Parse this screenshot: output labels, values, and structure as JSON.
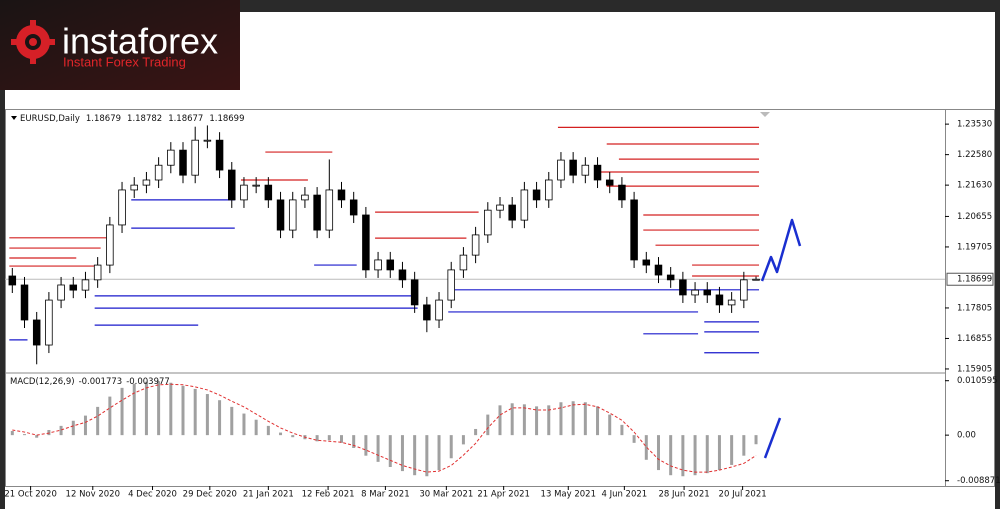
{
  "branding": {
    "name": "instaforex",
    "tagline": "Instant Forex Trading"
  },
  "chart_data": {
    "type": "candlestick",
    "symbol": "EURUSD,Daily",
    "xlim": [
      -0.6,
      76.5
    ],
    "xticks": [
      {
        "value": 1.5,
        "label": "21 Oct 2020"
      },
      {
        "value": 6.6,
        "label": "12 Nov 2020"
      },
      {
        "value": 11.5,
        "label": "4 Dec 2020"
      },
      {
        "value": 16.2,
        "label": "29 Dec 2020"
      },
      {
        "value": 21,
        "label": "21 Jan 2021"
      },
      {
        "value": 25.9,
        "label": "12 Feb 2021"
      },
      {
        "value": 30.6,
        "label": "8 Mar 2021"
      },
      {
        "value": 35.6,
        "label": "30 Mar 2021"
      },
      {
        "value": 40.3,
        "label": "21 Apr 2021"
      },
      {
        "value": 45.6,
        "label": "13 May 2021"
      },
      {
        "value": 50.2,
        "label": "4 Jun 2021"
      },
      {
        "value": 55.1,
        "label": "28 Jun 2021"
      },
      {
        "value": 59.9,
        "label": "20 Jul 2021"
      }
    ],
    "ylim": [
      1.1581,
      1.2397
    ],
    "yticks": [
      {
        "value": 1.2353,
        "label": "1.23530"
      },
      {
        "value": 1.2258,
        "label": "1.22580"
      },
      {
        "value": 1.2163,
        "label": "1.21630"
      },
      {
        "value": 1.20655,
        "label": "1.20655"
      },
      {
        "value": 1.19705,
        "label": "1.19705"
      },
      {
        "value": 1.17805,
        "label": "1.17805"
      },
      {
        "value": 1.16855,
        "label": "1.16855"
      },
      {
        "value": 1.15905,
        "label": "1.15905"
      }
    ],
    "color": "#000000",
    "series": {
      "open": [
        1.188,
        1.1852,
        1.1743,
        1.1665,
        1.1805,
        1.1852,
        1.1836,
        1.1868,
        1.1914,
        1.2039,
        1.2148,
        1.2163,
        1.2179,
        1.2225,
        1.2272,
        1.2194,
        1.2303,
        1.2303,
        1.221,
        1.2117,
        1.2163,
        1.2163,
        1.2117,
        1.2023,
        1.2117,
        1.2132,
        1.2023,
        1.2148,
        1.2117,
        1.207,
        1.1899,
        1.193,
        1.1899,
        1.1868,
        1.179,
        1.1743,
        1.1805,
        1.1899,
        1.1945,
        1.2008,
        1.2085,
        1.2101,
        1.2054,
        1.2148,
        1.2117,
        1.2179,
        1.2241,
        1.2194,
        1.2225,
        1.2179,
        1.2163,
        1.2117,
        1.193,
        1.1914,
        1.1883,
        1.1868,
        1.1821,
        1.1836,
        1.1821,
        1.179,
        1.1805,
        1.18679
      ],
      "high": [
        1.1905,
        1.1877,
        1.1768,
        1.183,
        1.1877,
        1.1877,
        1.1893,
        1.1939,
        1.2064,
        1.2173,
        1.2188,
        1.2204,
        1.225,
        1.2297,
        1.2297,
        1.2345,
        1.2349,
        1.2328,
        1.2235,
        1.2188,
        1.2188,
        1.2188,
        1.2142,
        1.2142,
        1.2157,
        1.2157,
        1.2243,
        1.2173,
        1.2142,
        1.2095,
        1.1955,
        1.1955,
        1.1924,
        1.1893,
        1.1815,
        1.183,
        1.1924,
        1.197,
        1.2033,
        1.211,
        1.2126,
        1.2126,
        1.2173,
        1.2173,
        1.2204,
        1.2266,
        1.2266,
        1.225,
        1.225,
        1.2204,
        1.2188,
        1.2142,
        1.1955,
        1.1939,
        1.1908,
        1.1893,
        1.1861,
        1.1861,
        1.1846,
        1.183,
        1.1893,
        1.18782
      ],
      "low": [
        1.1827,
        1.1718,
        1.1605,
        1.164,
        1.178,
        1.1811,
        1.1811,
        1.1843,
        1.1889,
        1.2014,
        1.2123,
        1.2138,
        1.2154,
        1.22,
        1.2169,
        1.2169,
        1.2278,
        1.2185,
        1.2092,
        1.2092,
        1.2138,
        1.2092,
        1.1998,
        1.1998,
        1.2092,
        1.1998,
        1.1998,
        1.2092,
        1.2045,
        1.1874,
        1.1874,
        1.1874,
        1.1843,
        1.1765,
        1.1705,
        1.1718,
        1.178,
        1.1874,
        1.192,
        1.1983,
        1.206,
        1.2029,
        1.2029,
        1.2092,
        1.2092,
        1.2154,
        1.2169,
        1.2169,
        1.2154,
        1.2138,
        1.2092,
        1.1905,
        1.1889,
        1.1858,
        1.1843,
        1.1796,
        1.1796,
        1.1796,
        1.1765,
        1.1765,
        1.178,
        1.18677
      ],
      "close": [
        1.1852,
        1.1743,
        1.1665,
        1.1805,
        1.1852,
        1.1836,
        1.1868,
        1.1914,
        1.2039,
        1.2148,
        1.2163,
        1.2179,
        1.2225,
        1.2272,
        1.2194,
        1.2303,
        1.2303,
        1.221,
        1.2117,
        1.2163,
        1.2163,
        1.2117,
        1.2023,
        1.2117,
        1.2132,
        1.2023,
        1.2148,
        1.2117,
        1.207,
        1.1899,
        1.193,
        1.1899,
        1.1868,
        1.179,
        1.1743,
        1.1805,
        1.1899,
        1.1945,
        1.2008,
        1.2085,
        1.2101,
        1.2054,
        1.2148,
        1.2117,
        1.2179,
        1.2241,
        1.2194,
        1.2225,
        1.2179,
        1.2163,
        1.2117,
        1.193,
        1.1914,
        1.1883,
        1.1868,
        1.1821,
        1.1836,
        1.1821,
        1.179,
        1.1805,
        1.1868,
        1.18699
      ]
    },
    "levels": [
      {
        "value": 1.2343,
        "from": 45,
        "to": 61,
        "color": "#d42020"
      },
      {
        "value": 1.2291,
        "from": 49,
        "to": 61,
        "color": "#d42020"
      },
      {
        "value": 1.2244,
        "from": 50,
        "to": 61,
        "color": "#d42020"
      },
      {
        "value": 1.2204,
        "from": 48,
        "to": 61,
        "color": "#d42020"
      },
      {
        "value": 1.216,
        "from": 49,
        "to": 61,
        "color": "#d42020"
      },
      {
        "value": 1.207,
        "from": 52,
        "to": 61,
        "color": "#d42020"
      },
      {
        "value": 1.2023,
        "from": 52,
        "to": 61,
        "color": "#d42020"
      },
      {
        "value": 1.1976,
        "from": 53,
        "to": 61,
        "color": "#d42020"
      },
      {
        "value": 1.2079,
        "from": 30,
        "to": 38,
        "color": "#d42020"
      },
      {
        "value": 1.1998,
        "from": 30,
        "to": 37,
        "color": "#d42020"
      },
      {
        "value": 1.1999,
        "from": 0,
        "to": 8,
        "color": "#d42020"
      },
      {
        "value": 1.1967,
        "from": 0,
        "to": 7,
        "color": "#d42020"
      },
      {
        "value": 1.1936,
        "from": 0,
        "to": 5,
        "color": "#d42020"
      },
      {
        "value": 1.1911,
        "from": 0,
        "to": 7,
        "color": "#d42020"
      },
      {
        "value": 1.2266,
        "from": 21,
        "to": 26,
        "color": "#d42020"
      },
      {
        "value": 1.2179,
        "from": 19,
        "to": 24,
        "color": "#d42020"
      },
      {
        "value": 1.1914,
        "from": 56,
        "to": 61,
        "color": "#d42020"
      },
      {
        "value": 1.188,
        "from": 56,
        "to": 61,
        "color": "#d42020"
      },
      {
        "value": 1.1837,
        "from": 36,
        "to": 61,
        "color": "#1a1acc"
      },
      {
        "value": 1.1818,
        "from": 7,
        "to": 33,
        "color": "#1a1acc"
      },
      {
        "value": 1.178,
        "from": 7,
        "to": 33,
        "color": "#1a1acc"
      },
      {
        "value": 1.1768,
        "from": 36,
        "to": 56,
        "color": "#1a1acc"
      },
      {
        "value": 1.1737,
        "from": 57,
        "to": 61,
        "color": "#1a1acc"
      },
      {
        "value": 1.1706,
        "from": 57,
        "to": 61,
        "color": "#1a1acc"
      },
      {
        "value": 1.1641,
        "from": 57,
        "to": 61,
        "color": "#1a1acc"
      },
      {
        "value": 1.17,
        "from": 52,
        "to": 56,
        "color": "#1a1acc"
      },
      {
        "value": 1.1727,
        "from": 7,
        "to": 15,
        "color": "#1a1acc"
      },
      {
        "value": 1.2117,
        "from": 10,
        "to": 18,
        "color": "#1a1acc"
      },
      {
        "value": 1.2029,
        "from": 10,
        "to": 18,
        "color": "#1a1acc"
      },
      {
        "value": 1.1914,
        "from": 25,
        "to": 28,
        "color": "#1a1acc"
      },
      {
        "value": 1.1681,
        "from": 0,
        "to": 1,
        "color": "#1a1acc"
      }
    ],
    "macd": {
      "label": "MACD(12,26,9)",
      "ylim": [
        -0.0099,
        0.0119
      ],
      "yticks": [
        0.010595,
        {
          "value": 0,
          "label": "0.00"
        },
        -0.008871
      ],
      "color": "#a0a0a0",
      "signal_color": "#e03030",
      "values": [
        0.0008,
        0.0002,
        -0.0005,
        0.001,
        0.0018,
        0.0028,
        0.0038,
        0.0055,
        0.0075,
        0.0092,
        0.01,
        0.0104,
        0.0105,
        0.0102,
        0.0096,
        0.009,
        0.008,
        0.0068,
        0.0055,
        0.0042,
        0.003,
        0.0018,
        0.0005,
        -0.0004,
        -0.0008,
        -0.0012,
        -0.001,
        -0.0015,
        -0.0025,
        -0.004,
        -0.0052,
        -0.0062,
        -0.007,
        -0.0078,
        -0.008,
        -0.0068,
        -0.0045,
        -0.0018,
        0.0012,
        0.004,
        0.0058,
        0.0062,
        0.006,
        0.0056,
        0.0058,
        0.0064,
        0.0066,
        0.0064,
        0.0056,
        0.004,
        0.002,
        -0.0015,
        -0.0048,
        -0.0068,
        -0.0078,
        -0.008,
        -0.0078,
        -0.0074,
        -0.0068,
        -0.0058,
        -0.004,
        -0.001773
      ],
      "signal": [
        0.001,
        0.0006,
        0.0,
        0.0004,
        0.001,
        0.0018,
        0.0025,
        0.0037,
        0.0053,
        0.0068,
        0.0082,
        0.0092,
        0.0098,
        0.0099,
        0.0098,
        0.0094,
        0.0088,
        0.0078,
        0.0066,
        0.0055,
        0.0041,
        0.0027,
        0.0014,
        0.0004,
        -0.0004,
        -0.001,
        -0.0012,
        -0.0014,
        -0.002,
        -0.0029,
        -0.0039,
        -0.0049,
        -0.0059,
        -0.0066,
        -0.0072,
        -0.007,
        -0.0059,
        -0.0039,
        -0.0016,
        0.0014,
        0.0039,
        0.0053,
        0.0053,
        0.0049,
        0.0049,
        0.0053,
        0.0059,
        0.006,
        0.0055,
        0.0043,
        0.0029,
        0.0006,
        -0.0023,
        -0.0047,
        -0.006,
        -0.0068,
        -0.0072,
        -0.0072,
        -0.0068,
        -0.0062,
        -0.0055,
        -0.003977
      ]
    }
  }
}
